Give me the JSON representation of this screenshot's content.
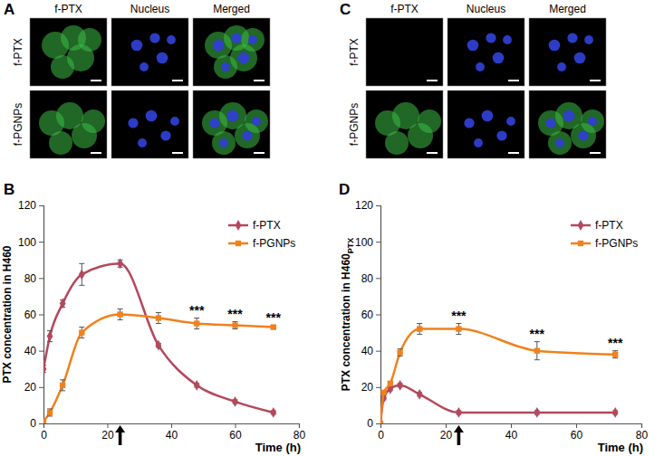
{
  "image_panels": [
    {
      "panel_label": "A",
      "columns": [
        "f-PTX",
        "Nucleus",
        "Merged"
      ],
      "rows": [
        "f-PTX",
        "f-PGNPs"
      ]
    },
    {
      "panel_label": "C",
      "columns": [
        "f-PTX",
        "Nucleus",
        "Merged"
      ],
      "rows": [
        "f-PTX",
        "f-PGNPs"
      ]
    }
  ],
  "chart_data": [
    {
      "type": "line",
      "panel_label": "B",
      "x_label": "Time (h)",
      "y_label": "PTX concentration in H460",
      "x": [
        0,
        2,
        6,
        12,
        24,
        36,
        48,
        60,
        72
      ],
      "xlim": [
        0,
        80
      ],
      "xticks": [
        0,
        20,
        40,
        60,
        80
      ],
      "ylim": [
        0,
        120
      ],
      "yticks": [
        0,
        20,
        40,
        60,
        80,
        100,
        120
      ],
      "legend": "upper right",
      "series": [
        {
          "name": "f-PTX",
          "color": "#b5485c",
          "marker": "diamond",
          "values": [
            30,
            48,
            66,
            82,
            88,
            43,
            21,
            12,
            6
          ],
          "errors": [
            2,
            3,
            2,
            6,
            2,
            1,
            1,
            1,
            1
          ]
        },
        {
          "name": "f-PGNPs",
          "color": "#f0811d",
          "marker": "square",
          "values": [
            1,
            6,
            21,
            50,
            60,
            58,
            55,
            54,
            53
          ],
          "errors": [
            1,
            2,
            3,
            3,
            3,
            3,
            3,
            2,
            1
          ]
        }
      ],
      "annotations": [
        {
          "x": 48,
          "text": "***"
        },
        {
          "x": 60,
          "text": "***"
        },
        {
          "x": 72,
          "text": "***"
        }
      ],
      "arrows": [
        24
      ]
    },
    {
      "type": "line",
      "panel_label": "D",
      "x_label": "Time (h)",
      "y_label": "PTX concentration in H460",
      "y_label_subscript": "PTX",
      "x": [
        0,
        1,
        3,
        6,
        12,
        24,
        48,
        72
      ],
      "xlim": [
        0,
        80
      ],
      "xticks": [
        0,
        20,
        40,
        60,
        80
      ],
      "ylim": [
        0,
        120
      ],
      "yticks": [
        0,
        20,
        40,
        60,
        80,
        100,
        120
      ],
      "legend": "upper right",
      "series": [
        {
          "name": "f-PTX",
          "color": "#b5485c",
          "marker": "diamond",
          "values": [
            0,
            14,
            19,
            21,
            16,
            6,
            6,
            6
          ],
          "errors": [
            1,
            1,
            1,
            1,
            1,
            1,
            1,
            1
          ]
        },
        {
          "name": "f-PGNPs",
          "color": "#f0811d",
          "marker": "square",
          "values": [
            0,
            17,
            22,
            39,
            52,
            52,
            40,
            38
          ],
          "errors": [
            1,
            1,
            1,
            2,
            3,
            3,
            5,
            2
          ]
        }
      ],
      "annotations": [
        {
          "x": 24,
          "text": "***"
        },
        {
          "x": 48,
          "text": "***"
        },
        {
          "x": 72,
          "text": "***"
        }
      ],
      "arrows": [
        24
      ]
    }
  ]
}
